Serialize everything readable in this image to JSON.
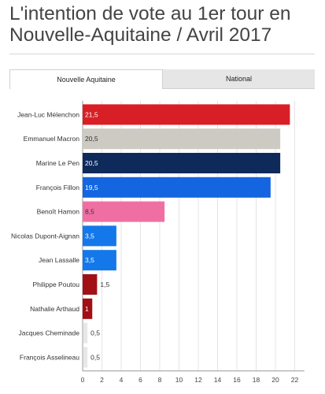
{
  "title": "L'intention de vote au 1er tour en Nouvelle-Aquitaine / Avril 2017",
  "tabs": [
    {
      "label": "Nouvelle Aquitaine",
      "active": true
    },
    {
      "label": "National",
      "active": false
    }
  ],
  "chart_data": {
    "type": "bar",
    "orientation": "horizontal",
    "title": "",
    "xlabel": "",
    "ylabel": "",
    "xlim": [
      0,
      23
    ],
    "xticks": [
      0,
      2,
      4,
      6,
      8,
      10,
      12,
      14,
      16,
      18,
      20,
      22
    ],
    "grid": true,
    "categories": [
      "Jean-Luc Mélenchon",
      "Emmanuel Macron",
      "Marine Le Pen",
      "François Fillon",
      "Benoît Hamon",
      "Nicolas Dupont-Aignan",
      "Jean Lassalle",
      "Philippe Poutou",
      "Nathalie Arthaud",
      "Jacques Cheminade",
      "François Asselineau"
    ],
    "values": [
      21.5,
      20.5,
      20.5,
      19.5,
      8.5,
      3.5,
      3.5,
      1.5,
      1,
      0.5,
      0.5
    ],
    "value_labels": [
      "21,5",
      "20,5",
      "20,5",
      "19,5",
      "8,5",
      "3,5",
      "3,5",
      "1,5",
      "1",
      "0,5",
      "0,5"
    ],
    "colors": [
      "#d81f26",
      "#cdc9c3",
      "#0e2a5b",
      "#1365e0",
      "#f06fa3",
      "#1478ea",
      "#1478ea",
      "#a11015",
      "#a11015",
      "#cfcfcf",
      "#cfcfcf"
    ],
    "label_colors": [
      "#ffffff",
      "#333333",
      "#ffffff",
      "#ffffff",
      "#333333",
      "#ffffff",
      "#ffffff",
      "#333333",
      "#ffffff",
      "#333333",
      "#333333"
    ]
  }
}
